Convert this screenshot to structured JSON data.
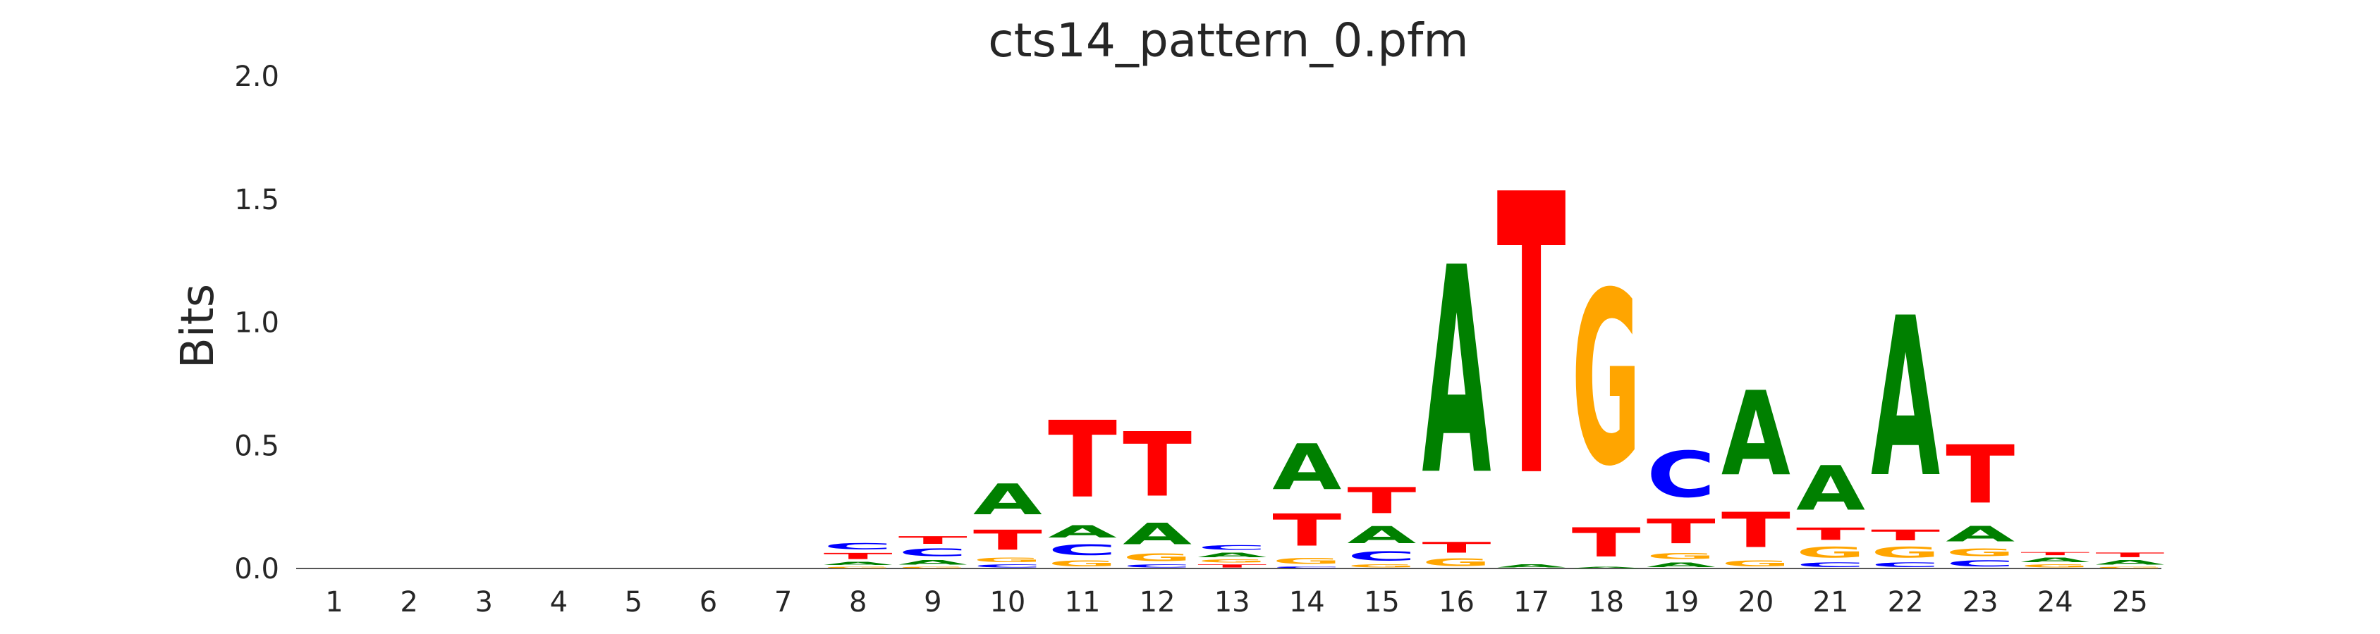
{
  "chart_data": {
    "type": "sequence-logo",
    "title": "cts14_pattern_0.pfm",
    "ylabel": "Bits",
    "xlabel": "",
    "ylim": [
      0,
      2.0
    ],
    "y_ticks": [
      "0.0",
      "0.5",
      "1.0",
      "1.5",
      "2.0"
    ],
    "y_tick_values": [
      0,
      0.5,
      1.0,
      1.5,
      2.0
    ],
    "positions": [
      "1",
      "2",
      "3",
      "4",
      "5",
      "6",
      "7",
      "8",
      "9",
      "10",
      "11",
      "12",
      "13",
      "14",
      "15",
      "16",
      "17",
      "18",
      "19",
      "20",
      "21",
      "22",
      "23",
      "24",
      "25"
    ],
    "colors": {
      "A": "#008000",
      "C": "#0000ff",
      "G": "#ffa500",
      "T": "#ff0000"
    },
    "stacks": [
      [],
      [],
      [],
      [],
      [],
      [],
      [],
      [
        [
          "G",
          0.01
        ],
        [
          "A",
          0.02
        ],
        [
          "T",
          0.04
        ],
        [
          "C",
          0.04
        ]
      ],
      [
        [
          "G",
          0.01
        ],
        [
          "A",
          0.03
        ],
        [
          "C",
          0.05
        ],
        [
          "T",
          0.05
        ]
      ],
      [
        [
          "C",
          0.02
        ],
        [
          "G",
          0.03
        ],
        [
          "T",
          0.13
        ],
        [
          "A",
          0.2
        ]
      ],
      [
        [
          "G",
          0.04
        ],
        [
          "C",
          0.07
        ],
        [
          "A",
          0.08
        ],
        [
          "T",
          0.5
        ]
      ],
      [
        [
          "C",
          0.02
        ],
        [
          "G",
          0.05
        ],
        [
          "A",
          0.14
        ],
        [
          "T",
          0.42
        ]
      ],
      [
        [
          "T",
          0.02
        ],
        [
          "G",
          0.02
        ],
        [
          "A",
          0.03
        ],
        [
          "C",
          0.03
        ]
      ],
      [
        [
          "C",
          0.01
        ],
        [
          "G",
          0.04
        ],
        [
          "T",
          0.21
        ],
        [
          "A",
          0.3
        ]
      ],
      [
        [
          "G",
          0.02
        ],
        [
          "C",
          0.06
        ],
        [
          "A",
          0.11
        ],
        [
          "T",
          0.17
        ]
      ],
      [
        [
          "G",
          0.05
        ],
        [
          "T",
          0.07
        ],
        [
          "A",
          1.35
        ]
      ],
      [
        [
          "A",
          0.02
        ],
        [
          "T",
          1.83
        ]
      ],
      [
        [
          "A",
          0.01
        ],
        [
          "T",
          0.19
        ],
        [
          "G",
          1.13
        ]
      ],
      [
        [
          "A",
          0.03
        ],
        [
          "G",
          0.04
        ],
        [
          "T",
          0.16
        ],
        [
          "C",
          0.3
        ]
      ],
      [
        [
          "G",
          0.04
        ],
        [
          "T",
          0.23
        ],
        [
          "A",
          0.55
        ]
      ],
      [
        [
          "C",
          0.03
        ],
        [
          "G",
          0.07
        ],
        [
          "T",
          0.08
        ],
        [
          "A",
          0.29
        ]
      ],
      [
        [
          "C",
          0.03
        ],
        [
          "G",
          0.07
        ],
        [
          "T",
          0.07
        ],
        [
          "A",
          1.04
        ]
      ],
      [
        [
          "C",
          0.04
        ],
        [
          "G",
          0.05
        ],
        [
          "A",
          0.1
        ],
        [
          "T",
          0.38
        ]
      ],
      [
        [
          "G",
          0.02
        ],
        [
          "A",
          0.03
        ],
        [
          "T",
          0.02
        ]
      ],
      [
        [
          "G",
          0.01
        ],
        [
          "A",
          0.03
        ],
        [
          "T",
          0.03
        ]
      ]
    ]
  }
}
